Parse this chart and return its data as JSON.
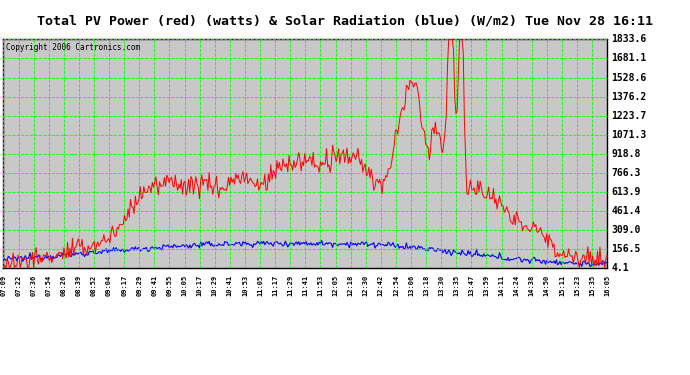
{
  "title": "Total PV Power (red) (watts) & Solar Radiation (blue) (W/m2) Tue Nov 28 16:11",
  "copyright": "Copyright 2006 Cartronics.com",
  "yticks": [
    4.1,
    156.5,
    309.0,
    461.4,
    613.9,
    766.3,
    918.8,
    1071.3,
    1223.7,
    1376.2,
    1528.6,
    1681.1,
    1833.6
  ],
  "ymin": 4.1,
  "ymax": 1833.6,
  "bg_color": "#ffffff",
  "plot_bg_color": "#c8c8c8",
  "grid_color": "#00ff00",
  "red_color": "#ff0000",
  "blue_color": "#0000ff",
  "title_fontsize": 9.5,
  "xtick_labels": [
    "07:09",
    "07:22",
    "07:36",
    "07:54",
    "08:26",
    "08:39",
    "08:52",
    "09:04",
    "09:17",
    "09:29",
    "09:41",
    "09:55",
    "10:05",
    "10:17",
    "10:29",
    "10:41",
    "10:53",
    "11:05",
    "11:17",
    "11:29",
    "11:41",
    "11:53",
    "12:05",
    "12:18",
    "12:30",
    "12:42",
    "12:54",
    "13:06",
    "13:18",
    "13:30",
    "13:35",
    "13:47",
    "13:59",
    "14:11",
    "14:24",
    "14:38",
    "14:50",
    "15:11",
    "15:23",
    "15:35",
    "16:05"
  ]
}
